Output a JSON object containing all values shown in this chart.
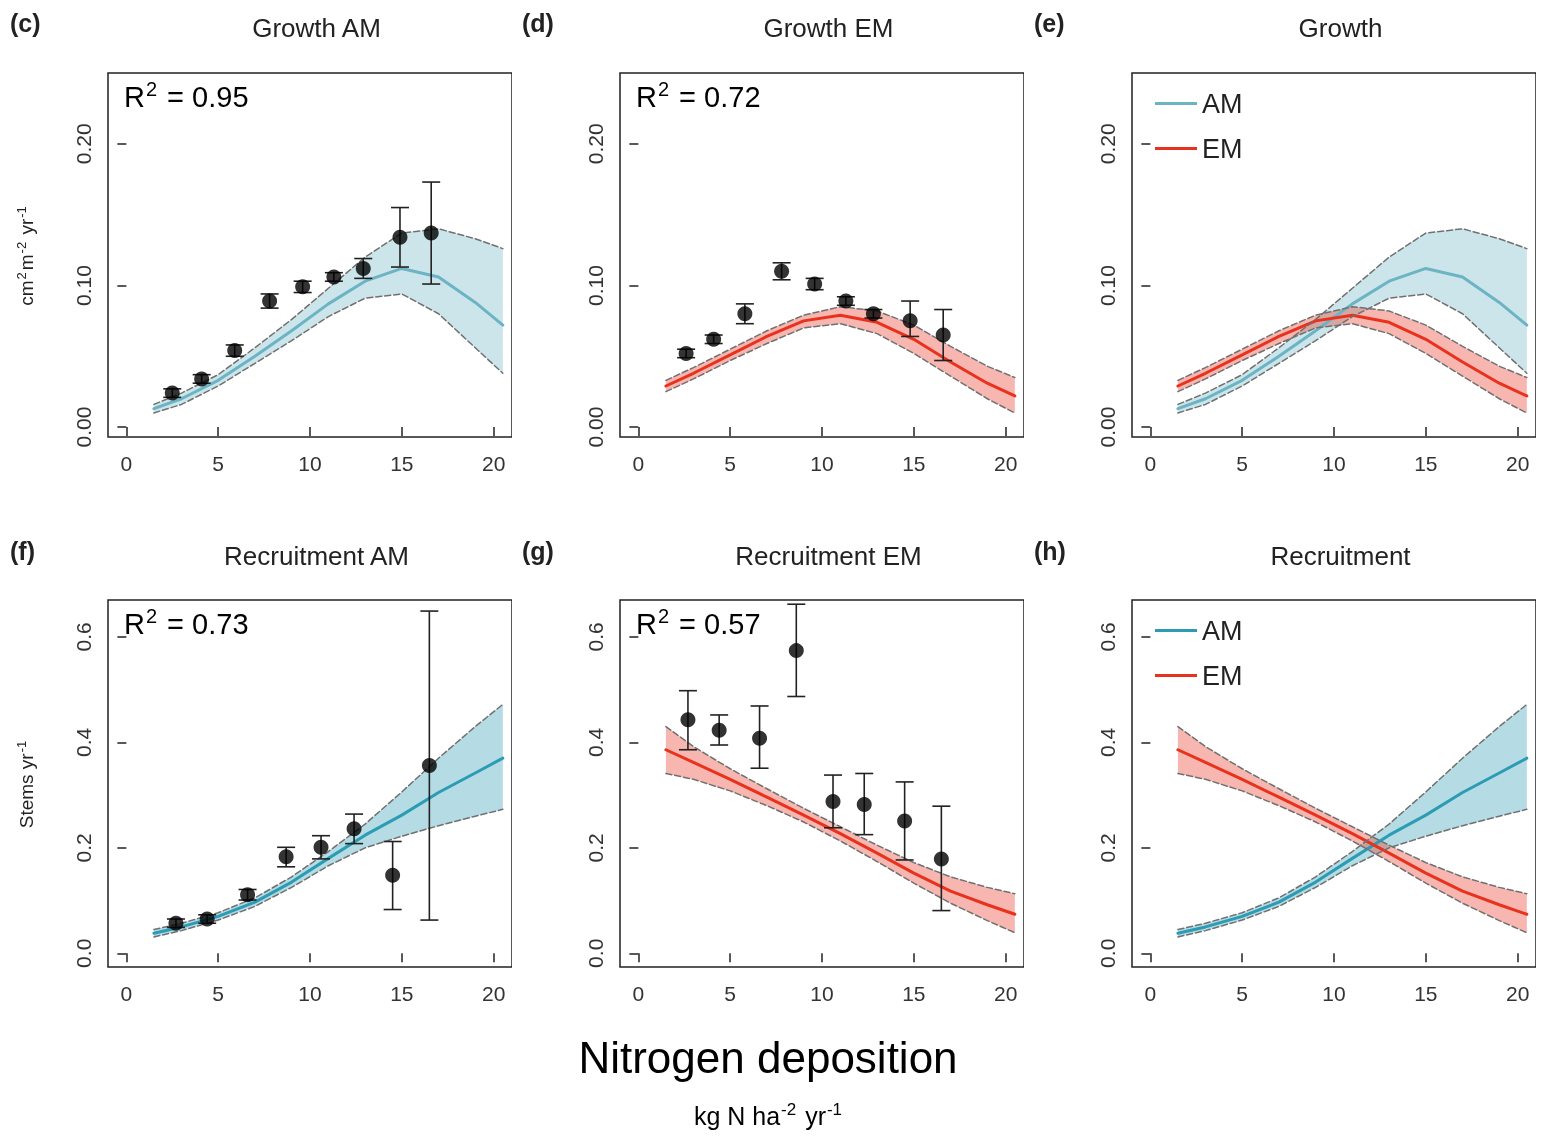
{
  "chart_data": [
    {
      "type": "line",
      "title": "Growth AM",
      "ylabel": "cm$^{2}$m$^{-2}$ yr$^{-1}$",
      "annotations": [
        "(c)",
        "R$^{2}$ = 0.95"
      ],
      "xlim": [
        -1,
        21
      ],
      "ylim": [
        -0.007,
        0.25
      ],
      "xticks": [
        0,
        5,
        10,
        15,
        20
      ],
      "yticks": [
        {
          "value": 0,
          "label": "0.00"
        },
        {
          "value": 0.1,
          "label": "0.10"
        },
        {
          "value": 0.2,
          "label": "0.20"
        }
      ],
      "series": [
        {
          "type": "line",
          "color": "#6cb4c4",
          "x": [
            1.5,
            3,
            5,
            7,
            9,
            11,
            13,
            15,
            17,
            19,
            20.5
          ],
          "values": [
            0.013,
            0.02,
            0.033,
            0.05,
            0.068,
            0.087,
            0.103,
            0.112,
            0.106,
            0.088,
            0.072
          ],
          "upper": [
            0.016,
            0.024,
            0.037,
            0.056,
            0.076,
            0.098,
            0.12,
            0.137,
            0.14,
            0.133,
            0.126
          ],
          "lower": [
            0.01,
            0.016,
            0.029,
            0.045,
            0.061,
            0.078,
            0.091,
            0.094,
            0.08,
            0.056,
            0.038
          ]
        },
        {
          "type": "line",
          "line_style": "dashed",
          "color": "#707070",
          "x": [
            1.5,
            3,
            5,
            7,
            9,
            11,
            13,
            15,
            17,
            19,
            20.5
          ],
          "values": [
            0.016,
            0.024,
            0.037,
            0.056,
            0.076,
            0.098,
            0.12,
            0.137,
            0.14,
            0.133,
            0.126
          ]
        },
        {
          "type": "line",
          "line_style": "dashed",
          "color": "#707070",
          "x": [
            1.5,
            3,
            5,
            7,
            9,
            11,
            13,
            15,
            17,
            19,
            20.5
          ],
          "values": [
            0.01,
            0.016,
            0.029,
            0.045,
            0.061,
            0.078,
            0.091,
            0.094,
            0.08,
            0.056,
            0.038
          ]
        },
        {
          "type": "scatter",
          "marker": "circle",
          "color": "#000000",
          "x": [
            2.5,
            4.1,
            5.9,
            7.8,
            9.6,
            11.3,
            12.9,
            14.9,
            16.6
          ],
          "values": [
            0.024,
            0.034,
            0.054,
            0.089,
            0.099,
            0.106,
            0.112,
            0.134,
            0.137
          ],
          "errors": [
            0.003,
            0.003,
            0.004,
            0.005,
            0.004,
            0.003,
            0.007,
            0.021,
            [
              0.101,
              0.173
            ]
          ]
        }
      ]
    },
    {
      "type": "line",
      "title": "Growth EM",
      "annotations": [
        "(d)",
        "R$^{2}$ = 0.72"
      ],
      "xlim": [
        -1,
        21
      ],
      "ylim": [
        -0.007,
        0.25
      ],
      "xticks": [
        0,
        5,
        10,
        15,
        20
      ],
      "yticks": [
        {
          "value": 0,
          "label": "0.00"
        },
        {
          "value": 0.1,
          "label": "0.10"
        },
        {
          "value": 0.2,
          "label": "0.20"
        }
      ],
      "series": [
        {
          "type": "line",
          "color": "#e8321e",
          "x": [
            1.5,
            3,
            5,
            7,
            9,
            11,
            13,
            15,
            17,
            19,
            20.5
          ],
          "values": [
            0.029,
            0.038,
            0.051,
            0.064,
            0.075,
            0.079,
            0.074,
            0.062,
            0.046,
            0.031,
            0.022
          ],
          "upper": [
            0.033,
            0.042,
            0.055,
            0.068,
            0.079,
            0.085,
            0.082,
            0.072,
            0.057,
            0.043,
            0.035
          ],
          "lower": [
            0.025,
            0.034,
            0.047,
            0.059,
            0.07,
            0.073,
            0.066,
            0.052,
            0.036,
            0.02,
            0.01
          ]
        },
        {
          "type": "line",
          "line_style": "dashed",
          "color": "#707070",
          "x": [
            1.5,
            3,
            5,
            7,
            9,
            11,
            13,
            15,
            17,
            19,
            20.5
          ],
          "values": [
            0.033,
            0.042,
            0.055,
            0.068,
            0.079,
            0.085,
            0.082,
            0.072,
            0.057,
            0.043,
            0.035
          ]
        },
        {
          "type": "line",
          "line_style": "dashed",
          "color": "#707070",
          "x": [
            1.5,
            3,
            5,
            7,
            9,
            11,
            13,
            15,
            17,
            19,
            20.5
          ],
          "values": [
            0.025,
            0.034,
            0.047,
            0.059,
            0.07,
            0.073,
            0.066,
            0.052,
            0.036,
            0.02,
            0.01
          ]
        },
        {
          "type": "scatter",
          "marker": "circle",
          "color": "#000000",
          "x": [
            2.6,
            4.1,
            5.8,
            7.8,
            9.6,
            11.3,
            12.8,
            14.8,
            16.6
          ],
          "values": [
            0.052,
            0.062,
            0.08,
            0.11,
            0.101,
            0.089,
            0.08,
            0.075,
            0.065
          ],
          "errors": [
            0.003,
            0.003,
            0.007,
            0.006,
            0.004,
            0.003,
            0.003,
            [
              0.064,
              0.089
            ],
            [
              0.047,
              0.083
            ]
          ]
        }
      ]
    },
    {
      "type": "line",
      "title": "Growth",
      "annotations": [
        "(e)"
      ],
      "legend": "top left",
      "xlim": [
        -1,
        21
      ],
      "ylim": [
        -0.007,
        0.25
      ],
      "xticks": [
        0,
        5,
        10,
        15,
        20
      ],
      "yticks": [
        {
          "value": 0,
          "label": "0.00"
        },
        {
          "value": 0.1,
          "label": "0.10"
        },
        {
          "value": 0.2,
          "label": "0.20"
        }
      ],
      "series": [
        {
          "type": "line",
          "name": "AM",
          "color": "#6cb4c4",
          "x": [
            1.5,
            3,
            5,
            7,
            9,
            11,
            13,
            15,
            17,
            19,
            20.5
          ],
          "values": [
            0.013,
            0.02,
            0.033,
            0.05,
            0.068,
            0.087,
            0.103,
            0.112,
            0.106,
            0.088,
            0.072
          ],
          "upper": [
            0.016,
            0.024,
            0.037,
            0.056,
            0.076,
            0.098,
            0.12,
            0.137,
            0.14,
            0.133,
            0.126
          ],
          "lower": [
            0.01,
            0.016,
            0.029,
            0.045,
            0.061,
            0.078,
            0.091,
            0.094,
            0.08,
            0.056,
            0.038
          ]
        },
        {
          "type": "line",
          "name": "EM",
          "color": "#e8321e",
          "x": [
            1.5,
            3,
            5,
            7,
            9,
            11,
            13,
            15,
            17,
            19,
            20.5
          ],
          "values": [
            0.029,
            0.038,
            0.051,
            0.064,
            0.075,
            0.079,
            0.074,
            0.062,
            0.046,
            0.031,
            0.022
          ],
          "upper": [
            0.033,
            0.042,
            0.055,
            0.068,
            0.079,
            0.085,
            0.082,
            0.072,
            0.057,
            0.043,
            0.035
          ],
          "lower": [
            0.025,
            0.034,
            0.047,
            0.059,
            0.07,
            0.073,
            0.066,
            0.052,
            0.036,
            0.02,
            0.01
          ]
        },
        {
          "type": "line",
          "line_style": "dashed",
          "color": "#707070",
          "x": [
            1.5,
            3,
            5,
            7,
            9,
            11,
            13,
            15,
            17,
            19,
            20.5
          ],
          "values": [
            0.016,
            0.024,
            0.037,
            0.056,
            0.076,
            0.098,
            0.12,
            0.137,
            0.14,
            0.133,
            0.126
          ]
        },
        {
          "type": "line",
          "line_style": "dashed",
          "color": "#707070",
          "x": [
            1.5,
            3,
            5,
            7,
            9,
            11,
            13,
            15,
            17,
            19,
            20.5
          ],
          "values": [
            0.01,
            0.016,
            0.029,
            0.045,
            0.061,
            0.078,
            0.091,
            0.094,
            0.08,
            0.056,
            0.038
          ]
        },
        {
          "type": "line",
          "line_style": "dashed",
          "color": "#707070",
          "x": [
            1.5,
            3,
            5,
            7,
            9,
            11,
            13,
            15,
            17,
            19,
            20.5
          ],
          "values": [
            0.033,
            0.042,
            0.055,
            0.068,
            0.079,
            0.085,
            0.082,
            0.072,
            0.057,
            0.043,
            0.035
          ]
        },
        {
          "type": "line",
          "line_style": "dashed",
          "color": "#707070",
          "x": [
            1.5,
            3,
            5,
            7,
            9,
            11,
            13,
            15,
            17,
            19,
            20.5
          ],
          "values": [
            0.025,
            0.034,
            0.047,
            0.059,
            0.07,
            0.073,
            0.066,
            0.052,
            0.036,
            0.02,
            0.01
          ]
        }
      ]
    },
    {
      "type": "line",
      "title": "Recruitment AM",
      "ylabel": "Stems yr$^{-1}$",
      "annotations": [
        "(f)",
        "R$^{2}$ = 0.73"
      ],
      "xlim": [
        -1,
        21
      ],
      "ylim": [
        -0.026,
        0.67
      ],
      "xticks": [
        0,
        5,
        10,
        15,
        20
      ],
      "yticks": [
        {
          "value": 0,
          "label": "0.0"
        },
        0.2,
        0.4,
        0.6
      ],
      "series": [
        {
          "type": "line",
          "color": "#2b9cb3",
          "x": [
            1.5,
            3,
            5,
            7,
            9,
            11,
            13,
            15,
            17,
            19,
            20.5
          ],
          "values": [
            0.038,
            0.05,
            0.07,
            0.097,
            0.135,
            0.18,
            0.224,
            0.262,
            0.305,
            0.342,
            0.37
          ],
          "upper": [
            0.045,
            0.057,
            0.077,
            0.105,
            0.145,
            0.193,
            0.245,
            0.306,
            0.37,
            0.43,
            0.472
          ],
          "lower": [
            0.031,
            0.043,
            0.063,
            0.089,
            0.125,
            0.166,
            0.2,
            0.222,
            0.242,
            0.26,
            0.273
          ]
        },
        {
          "type": "line",
          "line_style": "dashed",
          "color": "#707070",
          "x": [
            1.5,
            3,
            5,
            7,
            9,
            11,
            13,
            15,
            17,
            19,
            20.5
          ],
          "values": [
            0.045,
            0.057,
            0.077,
            0.105,
            0.145,
            0.193,
            0.245,
            0.306,
            0.37,
            0.43,
            0.472
          ]
        },
        {
          "type": "line",
          "line_style": "dashed",
          "color": "#707070",
          "x": [
            1.5,
            3,
            5,
            7,
            9,
            11,
            13,
            15,
            17,
            19,
            20.5
          ],
          "values": [
            0.031,
            0.043,
            0.063,
            0.089,
            0.125,
            0.166,
            0.2,
            0.222,
            0.242,
            0.26,
            0.273
          ]
        },
        {
          "type": "scatter",
          "marker": "circle",
          "color": "#000000",
          "x": [
            2.7,
            4.4,
            6.6,
            8.7,
            10.6,
            12.4,
            14.5,
            16.5
          ],
          "values": [
            0.057,
            0.065,
            0.111,
            0.183,
            0.201,
            0.236,
            0.148,
            0.356
          ],
          "errors": [
            0.008,
            0.008,
            0.01,
            [
              0.164,
              0.201
            ],
            0.022,
            [
              0.208,
              0.264
            ],
            [
              0.083,
              0.212
            ],
            [
              0.063,
              0.649
            ]
          ]
        }
      ]
    },
    {
      "type": "line",
      "title": "Recruitment EM",
      "xlabel": "Nitrogen deposition\nkg N ha$^{-2}$ yr$^{-1}$",
      "annotations": [
        "(g)",
        "R$^{2}$ = 0.57"
      ],
      "xlim": [
        -1,
        21
      ],
      "ylim": [
        -0.026,
        0.67
      ],
      "xticks": [
        0,
        5,
        10,
        15,
        20
      ],
      "yticks": [
        {
          "value": 0,
          "label": "0.0"
        },
        0.2,
        0.4,
        0.6
      ],
      "series": [
        {
          "type": "line",
          "color": "#e8321e",
          "x": [
            1.5,
            3,
            5,
            7,
            9,
            11,
            13,
            15,
            17,
            19,
            20.5
          ],
          "values": [
            0.386,
            0.362,
            0.33,
            0.296,
            0.262,
            0.227,
            0.19,
            0.152,
            0.118,
            0.092,
            0.074
          ],
          "upper": [
            0.43,
            0.392,
            0.35,
            0.312,
            0.275,
            0.24,
            0.205,
            0.172,
            0.145,
            0.125,
            0.113
          ],
          "lower": [
            0.341,
            0.33,
            0.308,
            0.28,
            0.249,
            0.213,
            0.174,
            0.133,
            0.095,
            0.062,
            0.039
          ]
        },
        {
          "type": "line",
          "line_style": "dashed",
          "color": "#707070",
          "x": [
            1.5,
            3,
            5,
            7,
            9,
            11,
            13,
            15,
            17,
            19,
            20.5
          ],
          "values": [
            0.43,
            0.392,
            0.35,
            0.312,
            0.275,
            0.24,
            0.205,
            0.172,
            0.145,
            0.125,
            0.113
          ]
        },
        {
          "type": "line",
          "line_style": "dashed",
          "color": "#707070",
          "x": [
            1.5,
            3,
            5,
            7,
            9,
            11,
            13,
            15,
            17,
            19,
            20.5
          ],
          "values": [
            0.341,
            0.33,
            0.308,
            0.28,
            0.249,
            0.213,
            0.174,
            0.133,
            0.095,
            0.062,
            0.039
          ]
        },
        {
          "type": "scatter",
          "marker": "circle",
          "color": "#000000",
          "x": [
            2.7,
            4.4,
            6.6,
            8.6,
            10.6,
            12.3,
            14.5,
            16.5
          ],
          "values": [
            0.443,
            0.423,
            0.408,
            0.574,
            0.288,
            0.282,
            0.251,
            0.179
          ],
          "errors": [
            [
              0.386,
              0.498
            ],
            [
              0.395,
              0.452
            ],
            [
              0.351,
              0.469
            ],
            [
              0.487,
              0.662
            ],
            [
              0.238,
              0.338
            ],
            [
              0.225,
              0.341
            ],
            [
              0.177,
              0.325
            ],
            [
              0.081,
              0.279
            ]
          ]
        }
      ]
    },
    {
      "type": "line",
      "title": "Recruitment",
      "annotations": [
        "(h)"
      ],
      "legend": "top left",
      "xlim": [
        -1,
        21
      ],
      "ylim": [
        -0.026,
        0.67
      ],
      "xticks": [
        0,
        5,
        10,
        15,
        20
      ],
      "yticks": [
        {
          "value": 0,
          "label": "0.0"
        },
        0.2,
        0.4,
        0.6
      ],
      "series": [
        {
          "type": "line",
          "name": "AM",
          "color": "#2b9cb3",
          "x": [
            1.5,
            3,
            5,
            7,
            9,
            11,
            13,
            15,
            17,
            19,
            20.5
          ],
          "values": [
            0.038,
            0.05,
            0.07,
            0.097,
            0.135,
            0.18,
            0.224,
            0.262,
            0.305,
            0.342,
            0.37
          ],
          "upper": [
            0.045,
            0.057,
            0.077,
            0.105,
            0.145,
            0.193,
            0.245,
            0.306,
            0.37,
            0.43,
            0.472
          ],
          "lower": [
            0.031,
            0.043,
            0.063,
            0.089,
            0.125,
            0.166,
            0.2,
            0.222,
            0.242,
            0.26,
            0.273
          ]
        },
        {
          "type": "line",
          "name": "EM",
          "color": "#e8321e",
          "x": [
            1.5,
            3,
            5,
            7,
            9,
            11,
            13,
            15,
            17,
            19,
            20.5
          ],
          "values": [
            0.386,
            0.362,
            0.33,
            0.296,
            0.262,
            0.227,
            0.19,
            0.152,
            0.118,
            0.092,
            0.074
          ],
          "upper": [
            0.43,
            0.392,
            0.35,
            0.312,
            0.275,
            0.24,
            0.205,
            0.172,
            0.145,
            0.125,
            0.113
          ],
          "lower": [
            0.341,
            0.33,
            0.308,
            0.28,
            0.249,
            0.213,
            0.174,
            0.133,
            0.095,
            0.062,
            0.039
          ]
        },
        {
          "type": "line",
          "line_style": "dashed",
          "color": "#707070",
          "x": [
            1.5,
            3,
            5,
            7,
            9,
            11,
            13,
            15,
            17,
            19,
            20.5
          ],
          "values": [
            0.045,
            0.057,
            0.077,
            0.105,
            0.145,
            0.193,
            0.245,
            0.306,
            0.37,
            0.43,
            0.472
          ]
        },
        {
          "type": "line",
          "line_style": "dashed",
          "color": "#707070",
          "x": [
            1.5,
            3,
            5,
            7,
            9,
            11,
            13,
            15,
            17,
            19,
            20.5
          ],
          "values": [
            0.031,
            0.043,
            0.063,
            0.089,
            0.125,
            0.166,
            0.2,
            0.222,
            0.242,
            0.26,
            0.273
          ]
        },
        {
          "type": "line",
          "line_style": "dashed",
          "color": "#707070",
          "x": [
            1.5,
            3,
            5,
            7,
            9,
            11,
            13,
            15,
            17,
            19,
            20.5
          ],
          "values": [
            0.43,
            0.392,
            0.35,
            0.312,
            0.275,
            0.24,
            0.205,
            0.172,
            0.145,
            0.125,
            0.113
          ]
        },
        {
          "type": "line",
          "line_style": "dashed",
          "color": "#707070",
          "x": [
            1.5,
            3,
            5,
            7,
            9,
            11,
            13,
            15,
            17,
            19,
            20.5
          ],
          "values": [
            0.341,
            0.33,
            0.308,
            0.28,
            0.249,
            0.213,
            0.174,
            0.133,
            0.095,
            0.062,
            0.039
          ]
        }
      ]
    }
  ]
}
